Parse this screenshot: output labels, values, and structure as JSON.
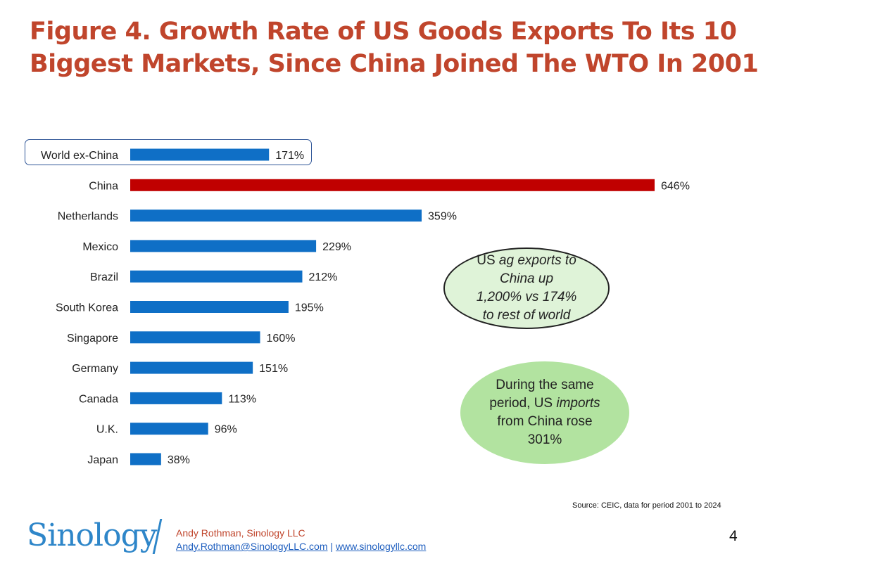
{
  "title_line1": "Figure 4. Growth Rate of US Goods Exports To Its 10",
  "title_line2": "Biggest Markets, Since China Joined The WTO In 2001",
  "chart_data": {
    "type": "bar",
    "orientation": "horizontal",
    "title": "Figure 4. Growth Rate of US Goods Exports To Its 10 Biggest Markets, Since China Joined The WTO In 2001",
    "categories": [
      "World ex-China",
      "China",
      "Netherlands",
      "Mexico",
      "Brazil",
      "South Korea",
      "Singapore",
      "Germany",
      "Canada",
      "U.K.",
      "Japan"
    ],
    "values": [
      171,
      646,
      359,
      229,
      212,
      195,
      160,
      151,
      113,
      96,
      38
    ],
    "value_labels": [
      "171%",
      "646%",
      "359%",
      "229%",
      "212%",
      "195%",
      "160%",
      "151%",
      "113%",
      "96%",
      "38%"
    ],
    "unit": "%",
    "highlighted": "World ex-China",
    "colors": {
      "default": "#0f6fc6",
      "China": "#c00000"
    },
    "xlim": [
      0,
      700
    ],
    "grid": false
  },
  "callouts": {
    "ag_html": [
      "US ",
      "ag exports to",
      "China up",
      "1,200% vs 174%",
      "to rest of world"
    ],
    "imports": [
      "During the same",
      "period, US ",
      "imports",
      "from China rose",
      "301%"
    ]
  },
  "source": "Source: CEIC, data for period 2001 to 2024",
  "footer": {
    "logo": "Sinology",
    "author": "Andy Rothman, Sinology LLC",
    "email": "Andy.Rothman@SinologyLLC.com",
    "separator": "|",
    "website": "www.sinologyllc.com",
    "page_number": "4"
  }
}
